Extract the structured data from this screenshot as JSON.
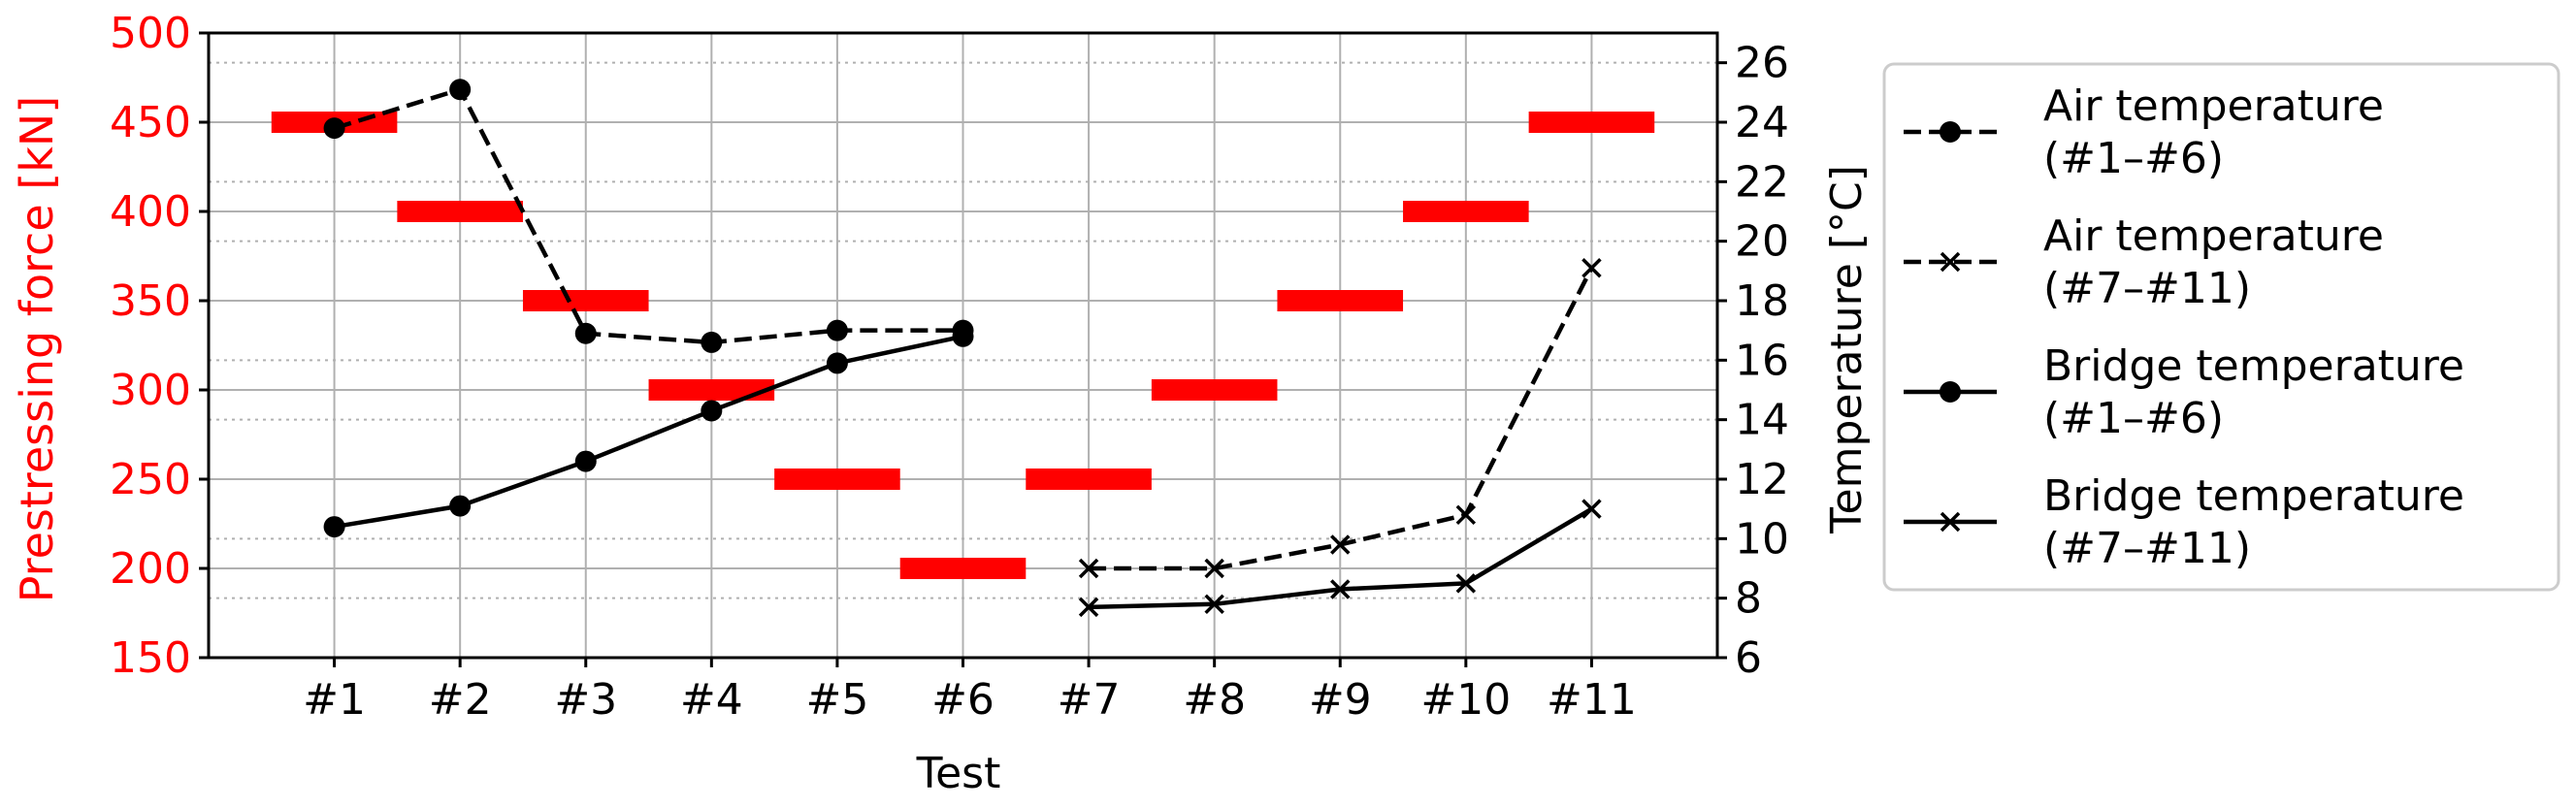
{
  "chart_data": {
    "type": "line",
    "xlabel": "Test",
    "ylabel_left": "Prestressing force [kN]",
    "ylabel_right": "Temperature [°C]",
    "categories": [
      "#1",
      "#2",
      "#3",
      "#4",
      "#5",
      "#6",
      "#7",
      "#8",
      "#9",
      "#10",
      "#11"
    ],
    "ylim_left": [
      150,
      500
    ],
    "yticks_left": [
      "150",
      "200",
      "250",
      "300",
      "350",
      "400",
      "450",
      "500"
    ],
    "ylim_right": [
      6,
      27
    ],
    "yticks_right": [
      "6",
      "8",
      "10",
      "12",
      "14",
      "16",
      "18",
      "20",
      "22",
      "24",
      "26"
    ],
    "grid": true,
    "legend_position": "right",
    "prestressing_force": {
      "axis": "left",
      "color": "#ff0000",
      "values": [
        450,
        400,
        350,
        300,
        250,
        200,
        250,
        300,
        350,
        400,
        450
      ]
    },
    "series": [
      {
        "name": "Air temperature\n (#1–#6)",
        "axis": "right",
        "line": "dashed",
        "marker": "circle",
        "color": "#000000",
        "x": [
          "#1",
          "#2",
          "#3",
          "#4",
          "#5",
          "#6"
        ],
        "values": [
          23.8,
          25.1,
          16.9,
          16.6,
          17.0,
          17.0
        ]
      },
      {
        "name": "Air temperature\n (#7–#11)",
        "axis": "right",
        "line": "dashed",
        "marker": "x",
        "color": "#000000",
        "x": [
          "#7",
          "#8",
          "#9",
          "#10",
          "#11"
        ],
        "values": [
          9.0,
          9.0,
          9.8,
          10.8,
          19.1
        ]
      },
      {
        "name": "Bridge temperature\n (#1–#6)",
        "axis": "right",
        "line": "solid",
        "marker": "circle",
        "color": "#000000",
        "x": [
          "#1",
          "#2",
          "#3",
          "#4",
          "#5",
          "#6"
        ],
        "values": [
          10.4,
          11.1,
          12.6,
          14.3,
          15.9,
          16.8
        ]
      },
      {
        "name": "Bridge temperature\n (#7–#11)",
        "axis": "right",
        "line": "solid",
        "marker": "x",
        "color": "#000000",
        "x": [
          "#7",
          "#8",
          "#9",
          "#10",
          "#11"
        ],
        "values": [
          7.7,
          7.8,
          8.3,
          8.5,
          11.0
        ]
      }
    ]
  }
}
